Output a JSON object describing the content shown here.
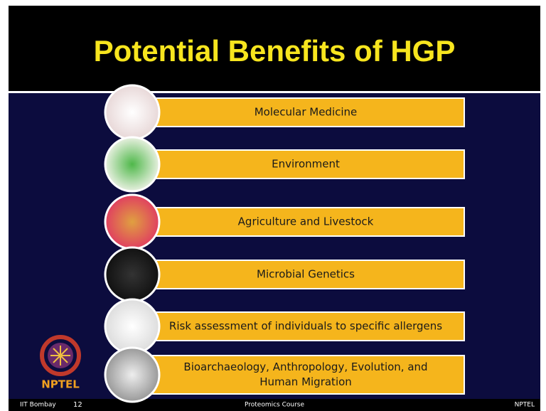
{
  "slide": {
    "title": "Potential Benefits of HGP",
    "items": [
      {
        "lines": [
          "Molecular Medicine"
        ]
      },
      {
        "lines": [
          "Environment"
        ]
      },
      {
        "lines": [
          "Agriculture and Livestock"
        ]
      },
      {
        "lines": [
          "Microbial Genetics"
        ]
      },
      {
        "lines": [
          "Risk assessment of individuals to specific allergens"
        ]
      },
      {
        "lines": [
          "Bioarchaeology, Anthropology, Evolution, and",
          "Human Migration"
        ]
      }
    ],
    "logo": "NPTEL",
    "footer": {
      "left": "IIT Bombay",
      "page": 12,
      "center": "Proteomics Course",
      "right": "NPTEL"
    }
  }
}
